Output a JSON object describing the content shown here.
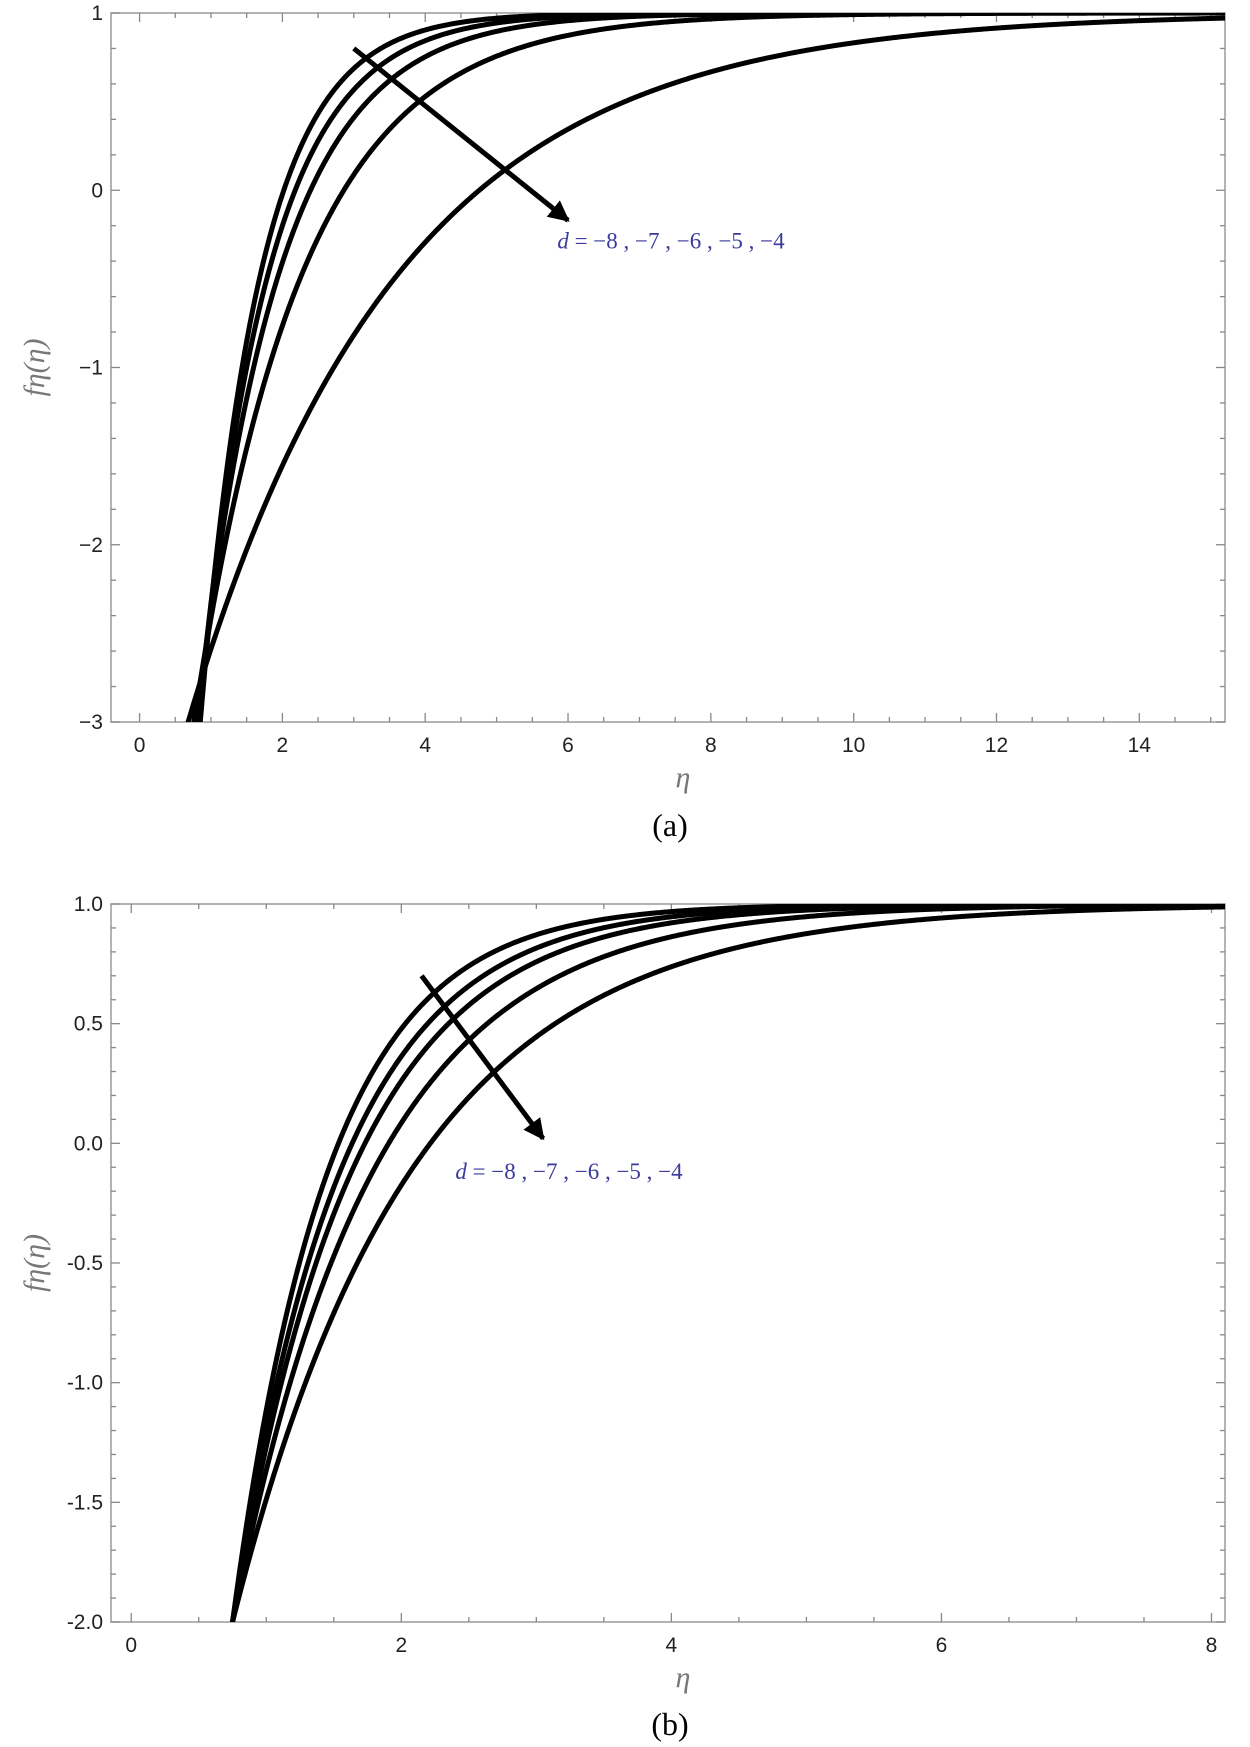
{
  "chart_data": [
    {
      "panel": "(a)",
      "type": "line",
      "xlabel": "η",
      "ylabel": "fη(η)",
      "xlim": [
        -0.4,
        15.2
      ],
      "ylim": [
        -3,
        1
      ],
      "xticks": [
        0,
        2,
        4,
        6,
        8,
        10,
        12,
        14
      ],
      "yticks": [
        -3,
        -2,
        -1,
        0,
        1
      ],
      "ytick_labels": [
        "−3",
        "−2",
        "−1",
        "0",
        "1"
      ],
      "annotation": {
        "prefix": "d",
        "text": " = −8 , −7 , −6 , −5 , −4",
        "arrow_from": [
          3.0,
          0.8
        ],
        "arrow_to": [
          6.0,
          -0.17
        ],
        "text_at": [
          5.85,
          -0.33
        ]
      },
      "series": [
        {
          "d": -8,
          "eta0": 0.85,
          "decay": 1.185
        },
        {
          "d": -7,
          "eta0": 0.82,
          "decay": 1.02
        },
        {
          "d": -6,
          "eta0": 0.8,
          "decay": 0.87
        },
        {
          "d": -5,
          "eta0": 0.76,
          "decay": 0.66
        },
        {
          "d": -4,
          "eta0": 0.68,
          "decay": 0.34
        }
      ]
    },
    {
      "panel": "(b)",
      "type": "line",
      "xlabel": "η",
      "ylabel": "fη(η)",
      "xlim": [
        -0.15,
        8.1
      ],
      "ylim": [
        -2,
        1
      ],
      "xticks": [
        0,
        2,
        4,
        6,
        8
      ],
      "yticks": [
        -2.0,
        -1.5,
        -1.0,
        -0.5,
        0.0,
        0.5,
        1.0
      ],
      "ytick_labels": [
        "-2.0",
        "-1.5",
        "-1.0",
        "-0.5",
        "0.0",
        "0.5",
        "1.0"
      ],
      "annotation": {
        "prefix": "d",
        "text": " = −8 , −7 , −6 , −5 , −4",
        "arrow_from": [
          2.15,
          0.7
        ],
        "arrow_to": [
          3.05,
          0.02
        ],
        "text_at": [
          2.4,
          -0.15
        ]
      },
      "series": [
        {
          "d": -8,
          "eta0": 0.75,
          "decay": 1.4
        },
        {
          "d": -7,
          "eta0": 0.75,
          "decay": 1.24
        },
        {
          "d": -6,
          "eta0": 0.75,
          "decay": 1.12
        },
        {
          "d": -5,
          "eta0": 0.75,
          "decay": 0.95
        },
        {
          "d": -4,
          "eta0": 0.75,
          "decay": 0.75
        }
      ]
    }
  ],
  "captions": [
    "(a)",
    "(b)"
  ]
}
